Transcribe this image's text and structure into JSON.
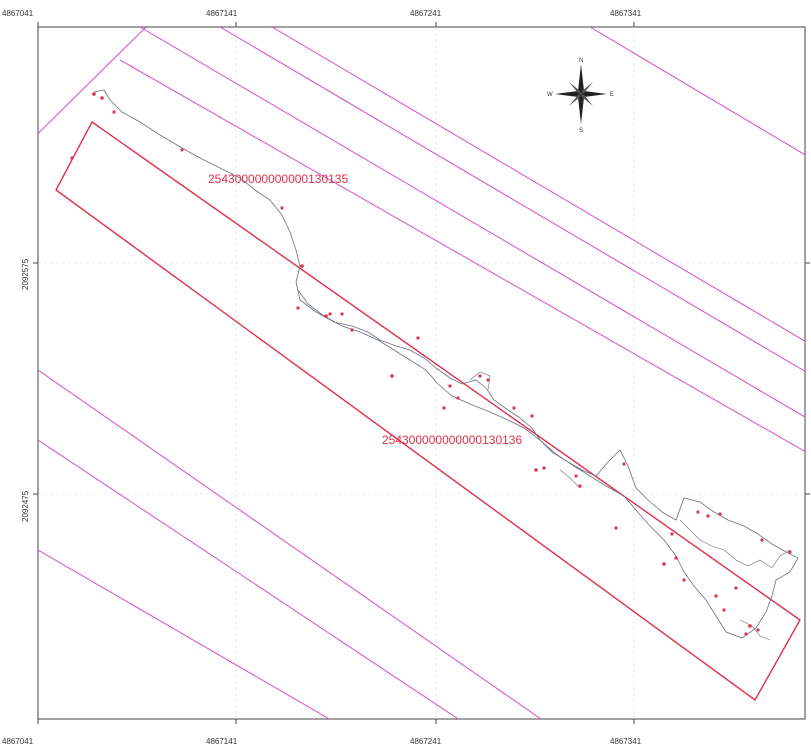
{
  "map": {
    "axes": {
      "top_ticks": [
        "4867041",
        "4867141",
        "4867241",
        "4867341"
      ],
      "bottom_ticks": [
        "4867041",
        "4867141",
        "4867241",
        "4867341"
      ],
      "left_ticks": [
        "2092575",
        "2092475"
      ]
    },
    "parcels": [
      {
        "id": "254300000000000130135"
      },
      {
        "id": "254300000000000130136"
      }
    ],
    "compass": {
      "n": "N",
      "e": "E",
      "s": "S",
      "w": "W"
    },
    "colors": {
      "parcel_line": "#d84fc8",
      "highlight_parcel": "#e0304a",
      "trail": "#6a6f86",
      "sample_point": "#e0304a",
      "frame": "#444444",
      "grid": "#d9dde6"
    }
  }
}
